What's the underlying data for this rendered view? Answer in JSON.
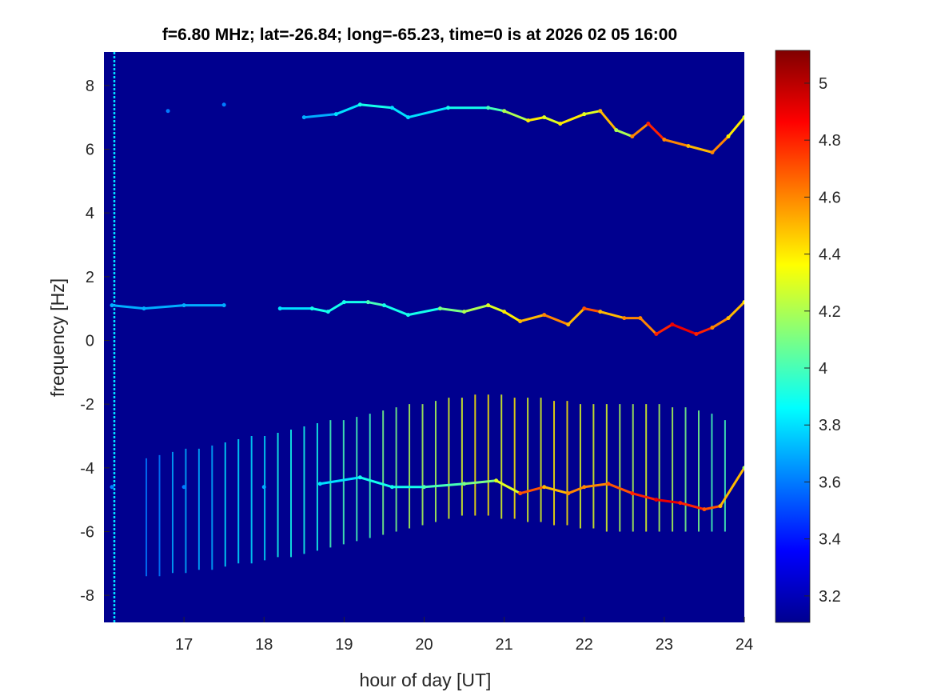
{
  "chart_data": {
    "type": "heatmap",
    "title": "f=6.80 MHz;  lat=-26.84; long=-65.23, time=0 is at 2026 02 05 16:00",
    "xlabel": "hour of day [UT]",
    "ylabel": "frequency [Hz]",
    "xlim": [
      16,
      24
    ],
    "ylim": [
      -8.85,
      9.05
    ],
    "clim": [
      3.107,
      5.115
    ],
    "colormap": "jet",
    "xticks": [
      "17",
      "18",
      "19",
      "20",
      "21",
      "22",
      "23",
      "24"
    ],
    "xtick_values": [
      17,
      18,
      19,
      20,
      21,
      22,
      23,
      24
    ],
    "yticks": [
      "-8",
      "-6",
      "-4",
      "-2",
      "0",
      "2",
      "4",
      "6",
      "8"
    ],
    "ytick_values": [
      -8,
      -6,
      -4,
      -2,
      0,
      2,
      4,
      6,
      8
    ],
    "cticks": [
      "3.2",
      "3.4",
      "3.6",
      "3.8",
      "4",
      "4.2",
      "4.4",
      "4.6",
      "4.8",
      "5"
    ],
    "ctick_values": [
      3.2,
      3.4,
      3.6,
      3.8,
      4.0,
      4.2,
      4.4,
      4.6,
      4.8,
      5.0
    ],
    "background_value": 3.15,
    "edge_line": {
      "hour": 16.13,
      "value": 3.8
    },
    "traces": [
      {
        "name": "upper-echo",
        "hours": [
          16.8,
          17.5,
          18.5,
          18.9,
          19.2,
          19.6,
          19.8,
          20.3,
          20.8,
          21.0,
          21.3,
          21.5,
          21.7,
          22.0,
          22.2,
          22.4,
          22.6,
          22.8,
          23.0,
          23.3,
          23.6,
          23.8,
          24.0
        ],
        "freqs": [
          7.2,
          7.4,
          7.0,
          7.1,
          7.4,
          7.3,
          7.0,
          7.3,
          7.3,
          7.2,
          6.9,
          7.0,
          6.8,
          7.1,
          7.2,
          6.6,
          6.4,
          6.8,
          6.3,
          6.1,
          5.9,
          6.4,
          7.0
        ],
        "values": [
          3.6,
          3.6,
          3.7,
          3.8,
          3.9,
          3.8,
          3.8,
          3.9,
          4.0,
          4.2,
          4.4,
          4.3,
          4.4,
          4.3,
          4.5,
          4.2,
          4.6,
          4.8,
          4.6,
          4.5,
          4.6,
          4.4,
          4.3
        ]
      },
      {
        "name": "middle-echo",
        "hours": [
          16.1,
          16.5,
          17.0,
          17.5,
          18.2,
          18.6,
          18.8,
          19.0,
          19.3,
          19.5,
          19.8,
          20.2,
          20.5,
          20.8,
          21.0,
          21.2,
          21.5,
          21.8,
          22.0,
          22.2,
          22.5,
          22.7,
          22.9,
          23.1,
          23.4,
          23.6,
          23.8,
          24.0
        ],
        "freqs": [
          1.1,
          1.0,
          1.1,
          1.1,
          1.0,
          1.0,
          0.9,
          1.2,
          1.2,
          1.1,
          0.8,
          1.0,
          0.9,
          1.1,
          0.9,
          0.6,
          0.8,
          0.5,
          1.0,
          0.9,
          0.7,
          0.7,
          0.2,
          0.5,
          0.2,
          0.4,
          0.7,
          1.2
        ],
        "values": [
          3.7,
          3.7,
          3.7,
          3.7,
          3.8,
          3.9,
          3.9,
          3.9,
          4.0,
          3.9,
          3.9,
          4.1,
          4.2,
          4.3,
          4.4,
          4.5,
          4.6,
          4.5,
          4.7,
          4.5,
          4.6,
          4.6,
          4.8,
          4.9,
          4.8,
          4.6,
          4.5,
          4.4
        ]
      },
      {
        "name": "lower-echo",
        "hours": [
          16.1,
          17.0,
          18.0,
          18.7,
          19.2,
          19.6,
          20.0,
          20.5,
          20.9,
          21.2,
          21.5,
          21.8,
          22.0,
          22.3,
          22.6,
          22.9,
          23.2,
          23.5,
          23.7,
          24.0
        ],
        "freqs": [
          -4.6,
          -4.6,
          -4.6,
          -4.5,
          -4.3,
          -4.6,
          -4.6,
          -4.5,
          -4.4,
          -4.8,
          -4.6,
          -4.8,
          -4.6,
          -4.5,
          -4.8,
          -5.0,
          -5.1,
          -5.3,
          -5.2,
          -4.0
        ],
        "values": [
          3.6,
          3.6,
          3.7,
          3.8,
          3.9,
          3.9,
          4.0,
          4.1,
          4.3,
          4.7,
          4.5,
          4.6,
          4.6,
          4.7,
          4.8,
          4.9,
          4.8,
          4.7,
          4.5,
          4.2
        ]
      }
    ],
    "stripes": {
      "start_hour": 16.53,
      "step_hour": 0.1643,
      "tops": [
        -3.7,
        -3.6,
        -3.5,
        -3.4,
        -3.4,
        -3.3,
        -3.2,
        -3.1,
        -3.0,
        -3.0,
        -2.9,
        -2.8,
        -2.7,
        -2.6,
        -2.5,
        -2.5,
        -2.4,
        -2.3,
        -2.2,
        -2.1,
        -2.0,
        -2.0,
        -1.9,
        -1.8,
        -1.8,
        -1.7,
        -1.7,
        -1.7,
        -1.8,
        -1.8,
        -1.8,
        -1.9,
        -1.9,
        -2.0,
        -2.0,
        -2.0,
        -2.0,
        -2.0,
        -2.0,
        -2.0,
        -2.1,
        -2.1,
        -2.2,
        -2.3,
        -2.5
      ],
      "bottoms": [
        -7.4,
        -7.4,
        -7.3,
        -7.3,
        -7.2,
        -7.2,
        -7.1,
        -7.0,
        -7.0,
        -6.9,
        -6.8,
        -6.8,
        -6.7,
        -6.6,
        -6.5,
        -6.4,
        -6.3,
        -6.2,
        -6.1,
        -6.0,
        -5.9,
        -5.8,
        -5.7,
        -5.6,
        -5.5,
        -5.5,
        -5.5,
        -5.6,
        -5.6,
        -5.7,
        -5.7,
        -5.8,
        -5.8,
        -5.9,
        -5.9,
        -6.0,
        -6.0,
        -6.0,
        -6.0,
        -6.0,
        -6.0,
        -6.0,
        -6.0,
        -6.0,
        -6.0
      ],
      "values": [
        3.6,
        3.6,
        3.7,
        3.7,
        3.7,
        3.7,
        3.8,
        3.8,
        3.8,
        3.8,
        3.9,
        3.9,
        3.9,
        3.9,
        4.0,
        4.0,
        4.0,
        4.0,
        4.1,
        4.1,
        4.2,
        4.2,
        4.2,
        4.3,
        4.3,
        4.4,
        4.4,
        4.3,
        4.4,
        4.3,
        4.3,
        4.4,
        4.4,
        4.3,
        4.3,
        4.3,
        4.2,
        4.2,
        4.3,
        4.2,
        4.2,
        4.1,
        4.1,
        4.0,
        4.0
      ]
    }
  }
}
